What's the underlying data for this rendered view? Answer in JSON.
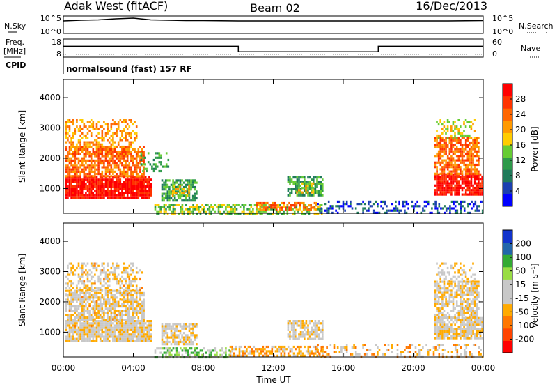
{
  "header": {
    "station": "Adak West (fitACF)",
    "beam": "Beam 02",
    "date": "16/Dec/2013"
  },
  "chart_data": [
    {
      "type": "line",
      "panel": "noise",
      "left_label": "N.Sky",
      "right_label": "N.Search",
      "left_ticks": [
        "10^5",
        "10^0"
      ],
      "right_ticks": [
        "10^5",
        "10^0"
      ],
      "series": [
        {
          "name": "N.Sky",
          "style": "solid",
          "x": [
            0,
            1,
            2,
            3,
            4,
            5,
            6,
            7,
            8,
            10,
            12,
            14,
            16,
            18,
            20,
            22,
            24
          ],
          "y": [
            3.6,
            3.8,
            3.9,
            4.2,
            4.4,
            3.9,
            3.8,
            3.7,
            3.7,
            3.6,
            3.6,
            3.6,
            3.6,
            3.6,
            3.6,
            3.6,
            3.7
          ]
        },
        {
          "name": "N.Search",
          "style": "dotted",
          "x": [
            0,
            24
          ],
          "y": [
            0.1,
            0.1
          ]
        }
      ]
    },
    {
      "type": "line",
      "panel": "frequency",
      "left_label_lines": [
        "Freq.",
        "[MHz]"
      ],
      "right_label": "Nave",
      "left_ticks": [
        "18",
        "8"
      ],
      "right_ticks": [
        "60",
        "0"
      ],
      "series": [
        {
          "name": "Freq.",
          "style": "solid",
          "x": [
            0,
            10,
            10,
            18,
            18,
            24
          ],
          "y": [
            14,
            14,
            11,
            11,
            14,
            14
          ]
        },
        {
          "name": "Nave",
          "style": "dotted",
          "x": [
            0,
            24
          ],
          "y": [
            10,
            10
          ]
        }
      ]
    },
    {
      "type": "text",
      "panel": "cpid",
      "label": "CPID",
      "value": "normalsound (fast) 157 RF"
    },
    {
      "type": "heatmap",
      "panel": "power",
      "ylabel": "Slant Range [km]",
      "ylim": [
        180,
        4600
      ],
      "yticks": [
        "1000",
        "2000",
        "3000",
        "4000"
      ],
      "colorbar": {
        "label": "Power [dB]",
        "ticks": [
          "28",
          "24",
          "20",
          "16",
          "12",
          "8",
          "4"
        ],
        "colors": [
          "#0000ff",
          "#1b3fb0",
          "#1f7a5a",
          "#2e9a4a",
          "#66cc33",
          "#ffcc00",
          "#ff9900",
          "#ff6600",
          "#ff3300",
          "#ff0000"
        ]
      },
      "patches": [
        {
          "t": [
            0.1,
            5.0
          ],
          "r": [
            700,
            1400
          ],
          "level": 9,
          "density": 0.9
        },
        {
          "t": [
            0.1,
            4.6
          ],
          "r": [
            1400,
            2400
          ],
          "level": 7,
          "density": 0.75
        },
        {
          "t": [
            0.1,
            4.2
          ],
          "r": [
            2400,
            3300
          ],
          "level": 6,
          "density": 0.45
        },
        {
          "t": [
            4.4,
            6.0
          ],
          "r": [
            1600,
            2200
          ],
          "level": 3,
          "density": 0.3
        },
        {
          "t": [
            5.6,
            7.6
          ],
          "r": [
            600,
            1300
          ],
          "level": 3,
          "density": 0.7
        },
        {
          "t": [
            6.2,
            7.2
          ],
          "r": [
            800,
            1100
          ],
          "level": 5,
          "density": 0.6
        },
        {
          "t": [
            5.2,
            14.8
          ],
          "r": [
            200,
            500
          ],
          "level": 4,
          "density": 0.6
        },
        {
          "t": [
            11.0,
            14.5
          ],
          "r": [
            300,
            550
          ],
          "level": 7,
          "density": 0.5
        },
        {
          "t": [
            12.8,
            14.8
          ],
          "r": [
            800,
            1400
          ],
          "level": 3,
          "density": 0.7
        },
        {
          "t": [
            13.3,
            14.3
          ],
          "r": [
            900,
            1200
          ],
          "level": 5,
          "density": 0.6
        },
        {
          "t": [
            14.5,
            24.0
          ],
          "r": [
            200,
            600
          ],
          "level": 1,
          "density": 0.35
        },
        {
          "t": [
            21.2,
            23.9
          ],
          "r": [
            800,
            1500
          ],
          "level": 9,
          "density": 0.85
        },
        {
          "t": [
            21.2,
            23.7
          ],
          "r": [
            1500,
            2700
          ],
          "level": 7,
          "density": 0.7
        },
        {
          "t": [
            21.3,
            23.5
          ],
          "r": [
            2700,
            3300
          ],
          "level": 5,
          "density": 0.35
        }
      ]
    },
    {
      "type": "heatmap",
      "panel": "velocity",
      "ylabel": "Slant Range [km]",
      "xlabel": "Time UT",
      "ylim": [
        180,
        4600
      ],
      "yticks": [
        "1000",
        "2000",
        "3000",
        "4000"
      ],
      "xticks": [
        "00:00",
        "04:00",
        "08:00",
        "12:00",
        "16:00",
        "20:00",
        "00:00"
      ],
      "colorbar": {
        "label": "Velocity [m s⁻¹]",
        "ticks": [
          "200",
          "100",
          "50",
          "15",
          "-15",
          "-50",
          "-100",
          "-200"
        ],
        "colors": [
          "#ff0000",
          "#ff4400",
          "#ff7700",
          "#ffaa00",
          "#c8c8c8",
          "#c8c8c8",
          "#99dd44",
          "#33aa33",
          "#2266aa",
          "#1133cc"
        ]
      },
      "patches": [
        {
          "t": [
            0.1,
            5.0
          ],
          "r": [
            700,
            1400
          ],
          "level": 4,
          "density": 0.9
        },
        {
          "t": [
            0.1,
            4.6
          ],
          "r": [
            1400,
            2400
          ],
          "level": 4,
          "density": 0.75
        },
        {
          "t": [
            0.1,
            4.2
          ],
          "r": [
            2400,
            3300
          ],
          "level": 4,
          "density": 0.45
        },
        {
          "t": [
            0.1,
            4.6
          ],
          "r": [
            1200,
            3300
          ],
          "level": 3,
          "density": 0.08
        },
        {
          "t": [
            5.6,
            7.6
          ],
          "r": [
            600,
            1300
          ],
          "level": 4,
          "density": 0.7
        },
        {
          "t": [
            5.2,
            9.5
          ],
          "r": [
            200,
            500
          ],
          "level": 6,
          "density": 0.6
        },
        {
          "t": [
            9.5,
            14.8
          ],
          "r": [
            200,
            550
          ],
          "level": 3,
          "density": 0.55
        },
        {
          "t": [
            12.8,
            14.8
          ],
          "r": [
            800,
            1400
          ],
          "level": 4,
          "density": 0.7
        },
        {
          "t": [
            14.5,
            24.0
          ],
          "r": [
            200,
            600
          ],
          "level": 3,
          "density": 0.3
        },
        {
          "t": [
            21.2,
            23.9
          ],
          "r": [
            800,
            1500
          ],
          "level": 4,
          "density": 0.85
        },
        {
          "t": [
            21.2,
            23.7
          ],
          "r": [
            1500,
            2700
          ],
          "level": 4,
          "density": 0.7
        },
        {
          "t": [
            21.3,
            23.5
          ],
          "r": [
            2700,
            3300
          ],
          "level": 4,
          "density": 0.35
        }
      ]
    }
  ]
}
